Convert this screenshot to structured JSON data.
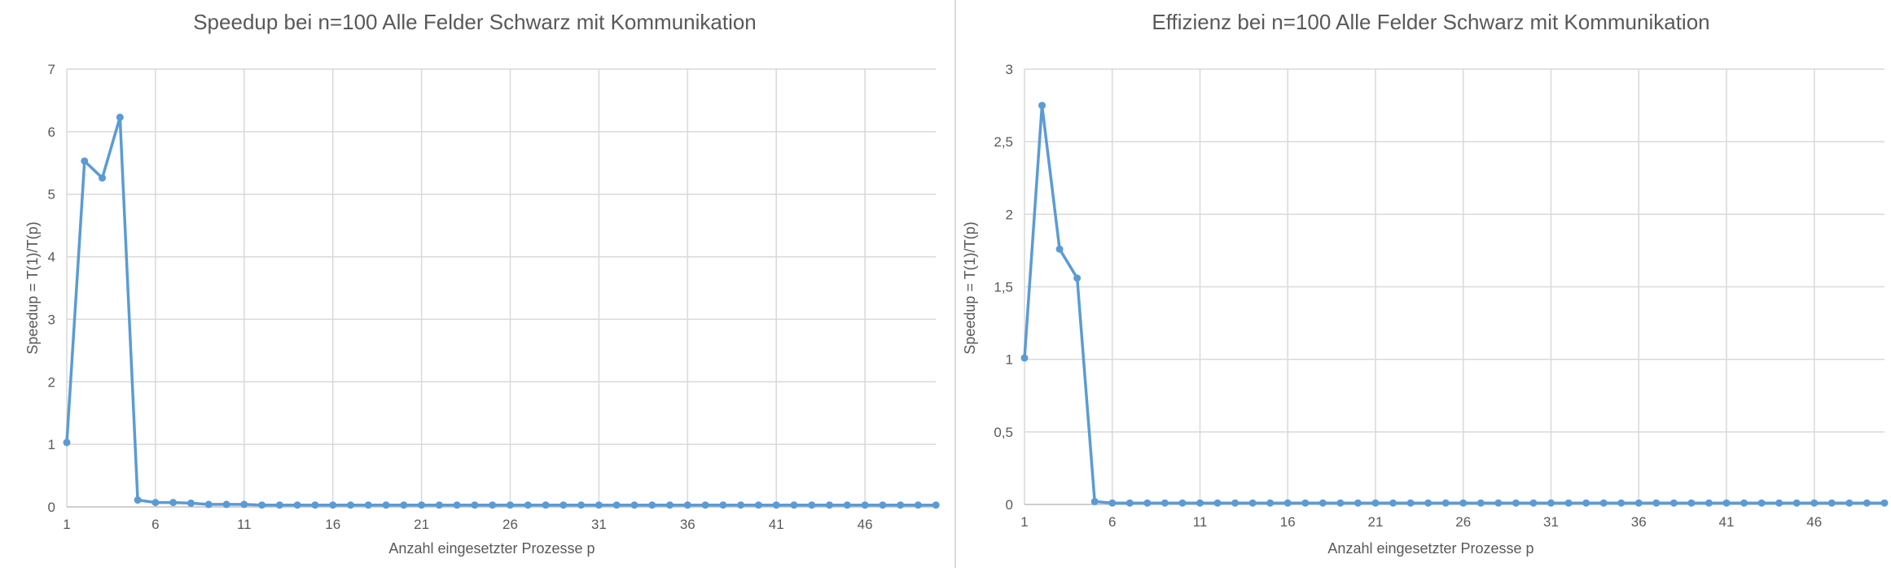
{
  "chart_data": [
    {
      "type": "line",
      "title": "Speedup bei n=100 Alle Felder Schwarz mit Kommunikation",
      "xlabel": "Anzahl eingesetzter Prozesse p",
      "ylabel": "Speedup = T(1)/T(p)",
      "x": [
        1,
        2,
        3,
        4,
        5,
        6,
        7,
        8,
        9,
        10,
        11,
        12,
        13,
        14,
        15,
        16,
        17,
        18,
        19,
        20,
        21,
        22,
        23,
        24,
        25,
        26,
        27,
        28,
        29,
        30,
        31,
        32,
        33,
        34,
        35,
        36,
        37,
        38,
        39,
        40,
        41,
        42,
        43,
        44,
        45,
        46,
        47,
        48,
        49,
        50
      ],
      "x_tick_labels": [
        "1",
        "6",
        "11",
        "16",
        "21",
        "26",
        "31",
        "36",
        "41",
        "46"
      ],
      "ylim": [
        0,
        7
      ],
      "y_tick_labels": [
        "0",
        "1",
        "2",
        "3",
        "4",
        "5",
        "6",
        "7"
      ],
      "series": [
        {
          "values": [
            1.03,
            5.53,
            5.26,
            6.23,
            0.11,
            0.07,
            0.07,
            0.06,
            0.04,
            0.04,
            0.04,
            0.03,
            0.03,
            0.03,
            0.03,
            0.03,
            0.03,
            0.03,
            0.03,
            0.03,
            0.03,
            0.03,
            0.03,
            0.03,
            0.03,
            0.03,
            0.03,
            0.03,
            0.03,
            0.03,
            0.03,
            0.03,
            0.03,
            0.03,
            0.03,
            0.03,
            0.03,
            0.03,
            0.03,
            0.03,
            0.03,
            0.03,
            0.03,
            0.03,
            0.03,
            0.03,
            0.03,
            0.03,
            0.03,
            0.03
          ]
        }
      ],
      "grid": true,
      "color": "#5b9bd5"
    },
    {
      "type": "line",
      "title": "Effizienz bei n=100 Alle Felder Schwarz mit Kommunikation",
      "xlabel": "Anzahl eingesetzter Prozesse p",
      "ylabel": "Speedup = T(1)/T(p)",
      "x": [
        1,
        2,
        3,
        4,
        5,
        6,
        7,
        8,
        9,
        10,
        11,
        12,
        13,
        14,
        15,
        16,
        17,
        18,
        19,
        20,
        21,
        22,
        23,
        24,
        25,
        26,
        27,
        28,
        29,
        30,
        31,
        32,
        33,
        34,
        35,
        36,
        37,
        38,
        39,
        40,
        41,
        42,
        43,
        44,
        45,
        46,
        47,
        48,
        49,
        50
      ],
      "x_tick_labels": [
        "1",
        "6",
        "11",
        "16",
        "21",
        "26",
        "31",
        "36",
        "41",
        "46"
      ],
      "ylim": [
        0,
        3
      ],
      "y_tick_labels": [
        "0",
        "0,5",
        "1",
        "1,5",
        "2",
        "2,5",
        "3"
      ],
      "series": [
        {
          "values": [
            1.01,
            2.75,
            1.76,
            1.56,
            0.02,
            0.01,
            0.01,
            0.01,
            0.01,
            0.01,
            0.01,
            0.01,
            0.01,
            0.01,
            0.01,
            0.01,
            0.01,
            0.01,
            0.01,
            0.01,
            0.01,
            0.01,
            0.01,
            0.01,
            0.01,
            0.01,
            0.01,
            0.01,
            0.01,
            0.01,
            0.01,
            0.01,
            0.01,
            0.01,
            0.01,
            0.01,
            0.01,
            0.01,
            0.01,
            0.01,
            0.01,
            0.01,
            0.01,
            0.01,
            0.01,
            0.01,
            0.01,
            0.01,
            0.01,
            0.01
          ]
        }
      ],
      "grid": true,
      "color": "#5b9bd5"
    }
  ]
}
